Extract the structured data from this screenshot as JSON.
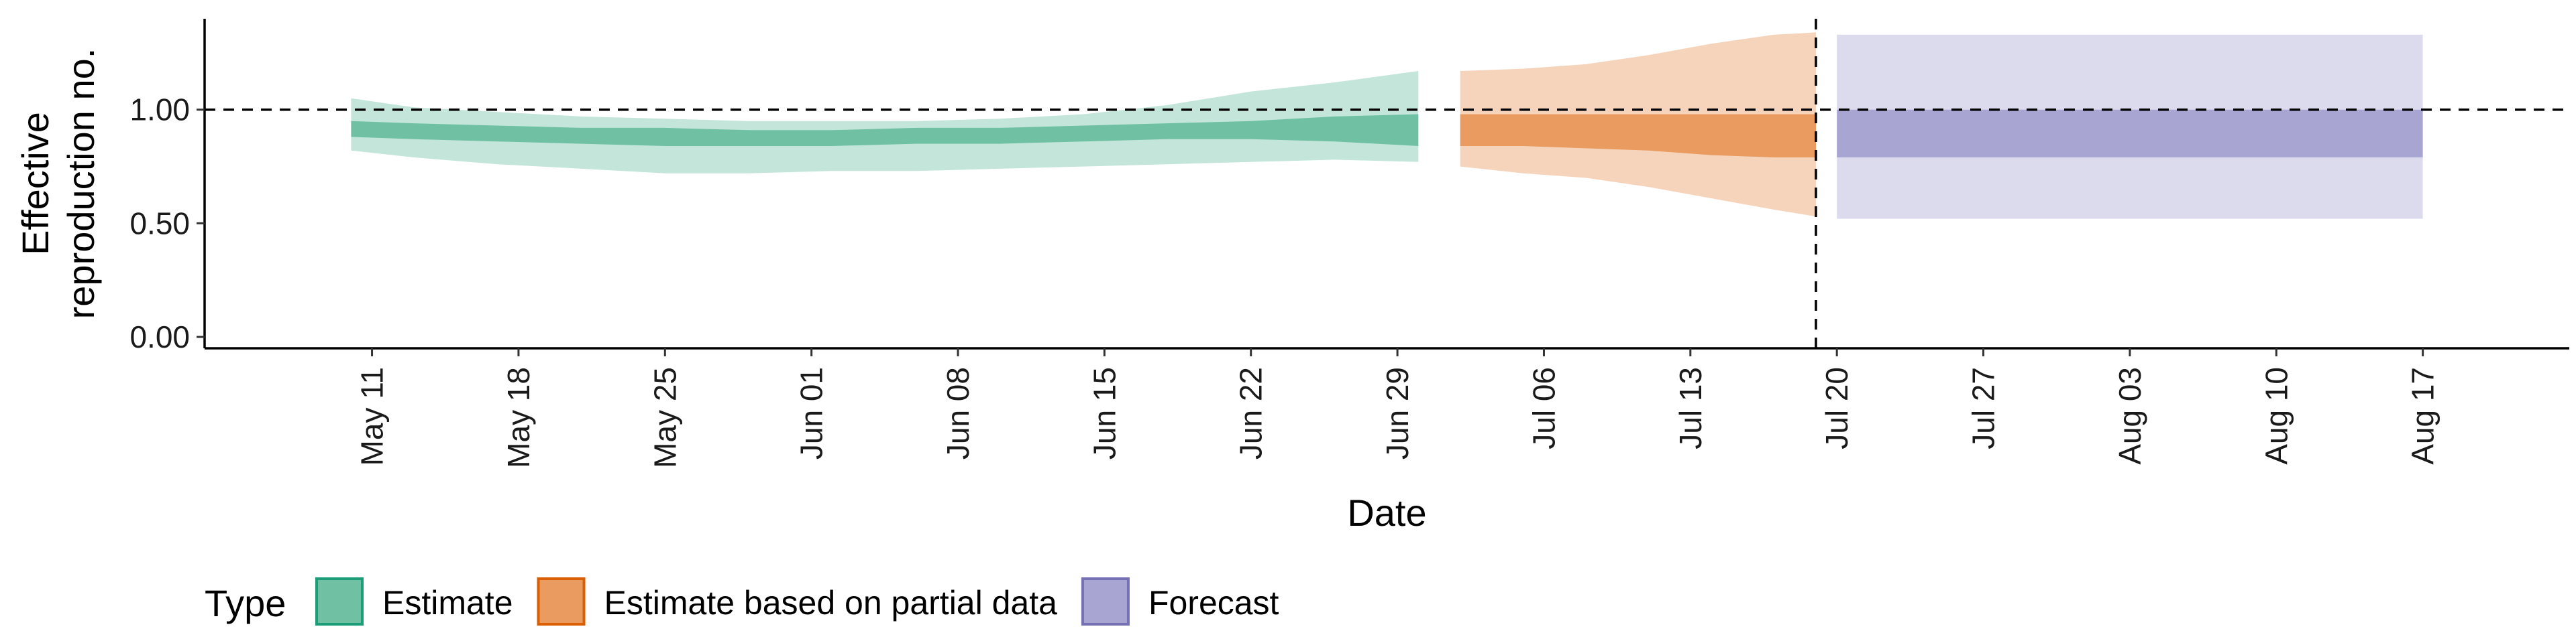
{
  "chart_data": {
    "type": "area",
    "xlabel": "Date",
    "ylabel_lines": [
      "Effective",
      "reproduction no."
    ],
    "x_domain": [
      "2020-05-03",
      "2020-08-24"
    ],
    "ylim": [
      -0.05,
      1.4
    ],
    "yticks": [
      {
        "value": 0.0,
        "label": "0.00"
      },
      {
        "value": 0.5,
        "label": "0.50"
      },
      {
        "value": 1.0,
        "label": "1.00"
      }
    ],
    "xticks": [
      {
        "date": "2020-05-11",
        "label": "May 11"
      },
      {
        "date": "2020-05-18",
        "label": "May 18"
      },
      {
        "date": "2020-05-25",
        "label": "May 25"
      },
      {
        "date": "2020-06-01",
        "label": "Jun 01"
      },
      {
        "date": "2020-06-08",
        "label": "Jun 08"
      },
      {
        "date": "2020-06-15",
        "label": "Jun 15"
      },
      {
        "date": "2020-06-22",
        "label": "Jun 22"
      },
      {
        "date": "2020-06-29",
        "label": "Jun 29"
      },
      {
        "date": "2020-07-06",
        "label": "Jul 06"
      },
      {
        "date": "2020-07-13",
        "label": "Jul 13"
      },
      {
        "date": "2020-07-20",
        "label": "Jul 20"
      },
      {
        "date": "2020-07-27",
        "label": "Jul 27"
      },
      {
        "date": "2020-08-03",
        "label": "Aug 03"
      },
      {
        "date": "2020-08-10",
        "label": "Aug 10"
      },
      {
        "date": "2020-08-17",
        "label": "Aug 17"
      }
    ],
    "reference_lines": {
      "y": 1.0,
      "x_date": "2020-07-19"
    },
    "grid": false,
    "legend": {
      "title": "Type",
      "placement": "bottom",
      "items": [
        {
          "name": "Estimate",
          "fill": "#70c1a4",
          "border": "#1b9e77"
        },
        {
          "name": "Estimate based on partial data",
          "fill": "#e99b60",
          "border": "#d95f02"
        },
        {
          "name": "Forecast",
          "fill": "#a8a5d3",
          "border": "#7570b3"
        }
      ]
    },
    "series": [
      {
        "name": "Estimate",
        "inner_color": "#70c1a4",
        "outer_color": "#c4e6da",
        "points": [
          {
            "date": "2020-05-10",
            "lo90": 0.82,
            "hi90": 1.05,
            "lo50": 0.88,
            "hi50": 0.95
          },
          {
            "date": "2020-05-13",
            "lo90": 0.79,
            "hi90": 1.01,
            "lo50": 0.87,
            "hi50": 0.94
          },
          {
            "date": "2020-05-17",
            "lo90": 0.76,
            "hi90": 0.99,
            "lo50": 0.86,
            "hi50": 0.93
          },
          {
            "date": "2020-05-21",
            "lo90": 0.74,
            "hi90": 0.97,
            "lo50": 0.85,
            "hi50": 0.92
          },
          {
            "date": "2020-05-25",
            "lo90": 0.72,
            "hi90": 0.96,
            "lo50": 0.84,
            "hi50": 0.92
          },
          {
            "date": "2020-05-29",
            "lo90": 0.72,
            "hi90": 0.95,
            "lo50": 0.84,
            "hi50": 0.91
          },
          {
            "date": "2020-06-02",
            "lo90": 0.73,
            "hi90": 0.95,
            "lo50": 0.84,
            "hi50": 0.91
          },
          {
            "date": "2020-06-06",
            "lo90": 0.73,
            "hi90": 0.95,
            "lo50": 0.85,
            "hi50": 0.92
          },
          {
            "date": "2020-06-10",
            "lo90": 0.74,
            "hi90": 0.96,
            "lo50": 0.85,
            "hi50": 0.92
          },
          {
            "date": "2020-06-14",
            "lo90": 0.75,
            "hi90": 0.98,
            "lo50": 0.86,
            "hi50": 0.93
          },
          {
            "date": "2020-06-18",
            "lo90": 0.76,
            "hi90": 1.02,
            "lo50": 0.87,
            "hi50": 0.94
          },
          {
            "date": "2020-06-22",
            "lo90": 0.77,
            "hi90": 1.08,
            "lo50": 0.87,
            "hi50": 0.95
          },
          {
            "date": "2020-06-26",
            "lo90": 0.78,
            "hi90": 1.12,
            "lo50": 0.86,
            "hi50": 0.97
          },
          {
            "date": "2020-06-30",
            "lo90": 0.77,
            "hi90": 1.17,
            "lo50": 0.84,
            "hi50": 0.98
          }
        ]
      },
      {
        "name": "Estimate based on partial data",
        "inner_color": "#e99b60",
        "outer_color": "#f6d4bb",
        "points": [
          {
            "date": "2020-07-02",
            "lo90": 0.75,
            "hi90": 1.17,
            "lo50": 0.84,
            "hi50": 0.98
          },
          {
            "date": "2020-07-05",
            "lo90": 0.72,
            "hi90": 1.18,
            "lo50": 0.84,
            "hi50": 0.98
          },
          {
            "date": "2020-07-08",
            "lo90": 0.7,
            "hi90": 1.2,
            "lo50": 0.83,
            "hi50": 0.98
          },
          {
            "date": "2020-07-11",
            "lo90": 0.66,
            "hi90": 1.24,
            "lo50": 0.82,
            "hi50": 0.98
          },
          {
            "date": "2020-07-14",
            "lo90": 0.61,
            "hi90": 1.29,
            "lo50": 0.8,
            "hi50": 0.98
          },
          {
            "date": "2020-07-17",
            "lo90": 0.56,
            "hi90": 1.33,
            "lo50": 0.79,
            "hi50": 0.98
          },
          {
            "date": "2020-07-19",
            "lo90": 0.53,
            "hi90": 1.34,
            "lo50": 0.79,
            "hi50": 0.98
          }
        ]
      },
      {
        "name": "Forecast",
        "inner_color": "#a8a5d3",
        "outer_color": "#dcdbed",
        "points": [
          {
            "date": "2020-07-20",
            "lo90": 0.52,
            "hi90": 1.33,
            "lo50": 0.79,
            "hi50": 1.0
          },
          {
            "date": "2020-08-17",
            "lo90": 0.52,
            "hi90": 1.33,
            "lo50": 0.79,
            "hi50": 1.0
          }
        ]
      }
    ]
  }
}
